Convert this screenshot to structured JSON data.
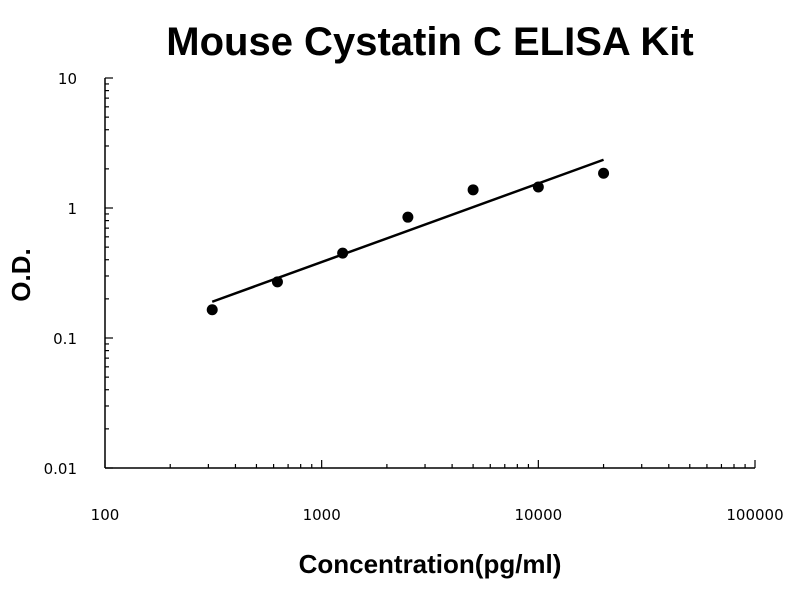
{
  "chart_data": {
    "type": "scatter",
    "title": "Mouse Cystatin C ELISA Kit",
    "xlabel": "Concentration(pg/ml)",
    "ylabel": "O.D.",
    "x_scale": "log",
    "y_scale": "log",
    "xlim": [
      100,
      100000
    ],
    "ylim": [
      0.01,
      10
    ],
    "x_ticks": [
      100,
      1000,
      10000,
      100000
    ],
    "x_tick_labels": [
      "100",
      "1000",
      "10000",
      "100000"
    ],
    "y_ticks": [
      0.01,
      0.1,
      1,
      10
    ],
    "y_tick_labels": [
      "0.01",
      "0.1",
      "1",
      "10"
    ],
    "grid": false,
    "series": [
      {
        "points": [
          {
            "x": 312.5,
            "y": 0.165
          },
          {
            "x": 625,
            "y": 0.27
          },
          {
            "x": 1250,
            "y": 0.45
          },
          {
            "x": 2500,
            "y": 0.85
          },
          {
            "x": 5000,
            "y": 1.38
          },
          {
            "x": 10000,
            "y": 1.45
          },
          {
            "x": 20000,
            "y": 1.85
          }
        ]
      }
    ],
    "trendline": {
      "type": "power",
      "from": {
        "x": 312.5,
        "y": 0.19
      },
      "to": {
        "x": 20000,
        "y": 2.35
      }
    },
    "colors": {
      "points": "#000000",
      "line": "#000000"
    }
  }
}
